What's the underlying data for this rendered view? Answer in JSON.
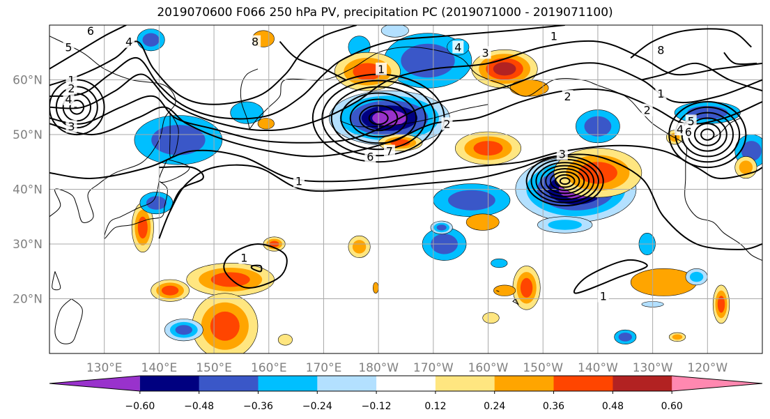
{
  "chart_data": {
    "type": "contour-map",
    "title": "2019070600 F066 250 hPa PV, precipitation PC (2019071000 - 2019071100)",
    "map": {
      "lon_range": [
        120,
        250
      ],
      "lat_range": [
        10,
        70
      ],
      "grid": true,
      "lon_ticks": [
        {
          "lon": 130,
          "label": "130°E"
        },
        {
          "lon": 140,
          "label": "140°E"
        },
        {
          "lon": 150,
          "label": "150°E"
        },
        {
          "lon": 160,
          "label": "160°E"
        },
        {
          "lon": 170,
          "label": "170°E"
        },
        {
          "lon": 180,
          "label": "180°W"
        },
        {
          "lon": 190,
          "label": "170°W"
        },
        {
          "lon": 200,
          "label": "160°W"
        },
        {
          "lon": 210,
          "label": "150°W"
        },
        {
          "lon": 220,
          "label": "140°W"
        },
        {
          "lon": 230,
          "label": "130°W"
        },
        {
          "lon": 240,
          "label": "120°W"
        }
      ],
      "lat_ticks": [
        {
          "lat": 20,
          "label": "20°N"
        },
        {
          "lat": 30,
          "label": "30°N"
        },
        {
          "lat": 40,
          "label": "40°N"
        },
        {
          "lat": 50,
          "label": "50°N"
        },
        {
          "lat": 60,
          "label": "60°N"
        }
      ]
    },
    "colorbar": {
      "orientation": "horizontal",
      "extend": "both",
      "colors": [
        "#9932cc",
        "#000080",
        "#3a57c8",
        "#00bfff",
        "#b3e0ff",
        "#ffffff",
        "#ffe680",
        "#ffa500",
        "#ff4500",
        "#b22222",
        "#ff88b0"
      ],
      "tick_labels": [
        "−0.60",
        "−0.48",
        "−0.36",
        "−0.24",
        "−0.12",
        "0.12",
        "0.24",
        "0.36",
        "0.48",
        "0.60"
      ]
    },
    "pv_contours": [
      {
        "label": "1",
        "lon": 165.5,
        "lat": 41.5
      },
      {
        "label": "1",
        "lon": 180.5,
        "lat": 62
      },
      {
        "label": "1",
        "lon": 155.5,
        "lat": 27.5
      },
      {
        "label": "1",
        "lon": 221,
        "lat": 20.5
      },
      {
        "label": "1",
        "lon": 212,
        "lat": 68
      },
      {
        "label": "1",
        "lon": 231.5,
        "lat": 57.5
      },
      {
        "label": "1",
        "lon": 124,
        "lat": 60
      },
      {
        "label": "2",
        "lon": 124,
        "lat": 58.5
      },
      {
        "label": "2",
        "lon": 192.5,
        "lat": 52
      },
      {
        "label": "2",
        "lon": 229,
        "lat": 54.5
      },
      {
        "label": "2",
        "lon": 214.5,
        "lat": 57
      },
      {
        "label": "3",
        "lon": 124,
        "lat": 51.5
      },
      {
        "label": "3",
        "lon": 213.5,
        "lat": 46.5
      },
      {
        "label": "3",
        "lon": 199.5,
        "lat": 65
      },
      {
        "label": "4",
        "lon": 123.5,
        "lat": 56.5
      },
      {
        "label": "4",
        "lon": 134.5,
        "lat": 67
      },
      {
        "label": "4",
        "lon": 194.5,
        "lat": 66
      },
      {
        "label": "4",
        "lon": 235,
        "lat": 51
      },
      {
        "label": "5",
        "lon": 123.5,
        "lat": 66
      },
      {
        "label": "5",
        "lon": 237,
        "lat": 52.5
      },
      {
        "label": "6",
        "lon": 127.5,
        "lat": 69
      },
      {
        "label": "6",
        "lon": 178.5,
        "lat": 46
      },
      {
        "label": "6",
        "lon": 236.5,
        "lat": 50.5
      },
      {
        "label": "7",
        "lon": 182,
        "lat": 47
      },
      {
        "label": "8",
        "lon": 157.5,
        "lat": 67
      },
      {
        "label": "8",
        "lon": 231.5,
        "lat": 65.5
      }
    ]
  }
}
